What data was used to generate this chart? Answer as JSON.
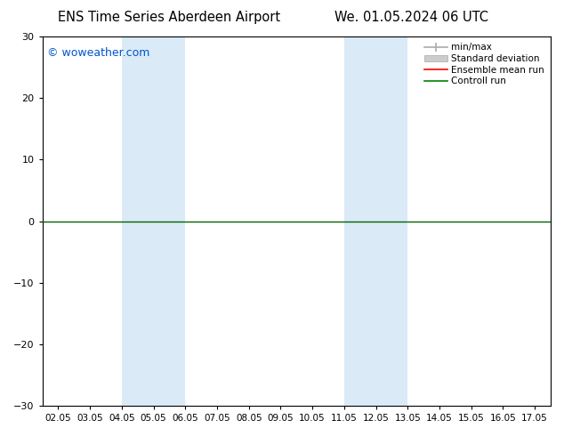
{
  "title": "ENS Time Series Aberdeen Airport",
  "title_right": "We. 01.05.2024 06 UTC",
  "watermark": "© woweather.com",
  "x_labels": [
    "02.05",
    "03.05",
    "04.05",
    "05.05",
    "06.05",
    "07.05",
    "08.05",
    "09.05",
    "10.05",
    "11.05",
    "12.05",
    "13.05",
    "14.05",
    "15.05",
    "16.05",
    "17.05"
  ],
  "ylim": [
    -30,
    30
  ],
  "yticks": [
    -30,
    -20,
    -10,
    0,
    10,
    20,
    30
  ],
  "shaded_regions": [
    {
      "x_start": "04.05",
      "x_end": "06.05"
    },
    {
      "x_start": "11.05",
      "x_end": "13.05"
    }
  ],
  "shaded_color": "#daeaf6",
  "legend_items": [
    {
      "label": "min/max",
      "type": "errorbar",
      "color": "#aaaaaa"
    },
    {
      "label": "Standard deviation",
      "type": "fillbetween",
      "color": "#cccccc"
    },
    {
      "label": "Ensemble mean run",
      "type": "line",
      "color": "red"
    },
    {
      "label": "Controll run",
      "type": "line",
      "color": "green"
    }
  ],
  "zero_line_color": "#006400",
  "background_color": "#ffffff",
  "plot_bg_color": "#ffffff",
  "spine_color": "#000000",
  "fig_width": 6.34,
  "fig_height": 4.9,
  "dpi": 100
}
